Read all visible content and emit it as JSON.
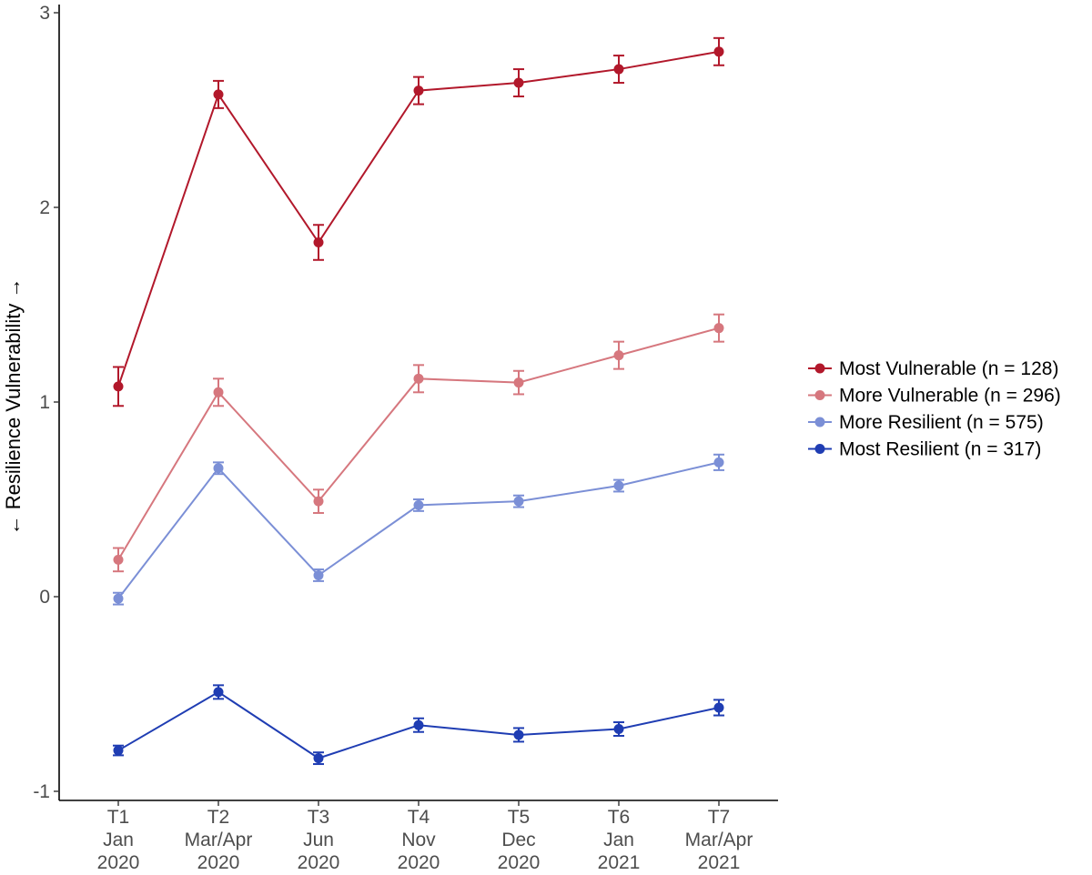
{
  "chart_data": {
    "type": "line",
    "title": "",
    "xlabel": "",
    "ylabel": "← Resilience Vulnerability →",
    "ylim": [
      -1.05,
      3.05
    ],
    "yticks": [
      -1,
      0,
      1,
      2,
      3
    ],
    "ytick_labels": [
      "-1",
      "0",
      "1",
      "2",
      "3"
    ],
    "grid": false,
    "legend_position": "right",
    "categories": [
      [
        "T1",
        "Jan",
        "2020"
      ],
      [
        "T2",
        "Mar/Apr",
        "2020"
      ],
      [
        "T3",
        "Jun",
        "2020"
      ],
      [
        "T4",
        "Nov",
        "2020"
      ],
      [
        "T5",
        "Dec",
        "2020"
      ],
      [
        "T6",
        "Jan",
        "2021"
      ],
      [
        "T7",
        "Mar/Apr",
        "2021"
      ]
    ],
    "series": [
      {
        "name": "Most Vulnerable (n = 128)",
        "color": "#b2182b",
        "values": [
          1.08,
          2.58,
          1.82,
          2.6,
          2.64,
          2.71,
          2.8
        ],
        "error": [
          0.1,
          0.07,
          0.09,
          0.07,
          0.07,
          0.07,
          0.07
        ]
      },
      {
        "name": "More Vulnerable (n = 296)",
        "color": "#d6777e",
        "values": [
          0.19,
          1.05,
          0.49,
          1.12,
          1.1,
          1.24,
          1.38
        ],
        "error": [
          0.06,
          0.07,
          0.06,
          0.07,
          0.06,
          0.07,
          0.07
        ]
      },
      {
        "name": "More Resilient (n = 575)",
        "color": "#7b8fd6",
        "values": [
          -0.01,
          0.66,
          0.11,
          0.47,
          0.49,
          0.57,
          0.69
        ],
        "error": [
          0.03,
          0.03,
          0.03,
          0.03,
          0.03,
          0.03,
          0.04
        ]
      },
      {
        "name": "Most Resilient (n = 317)",
        "color": "#1f3db3",
        "values": [
          -0.79,
          -0.49,
          -0.83,
          -0.66,
          -0.71,
          -0.68,
          -0.57
        ],
        "error": [
          0.025,
          0.035,
          0.03,
          0.035,
          0.035,
          0.035,
          0.04
        ]
      }
    ]
  }
}
